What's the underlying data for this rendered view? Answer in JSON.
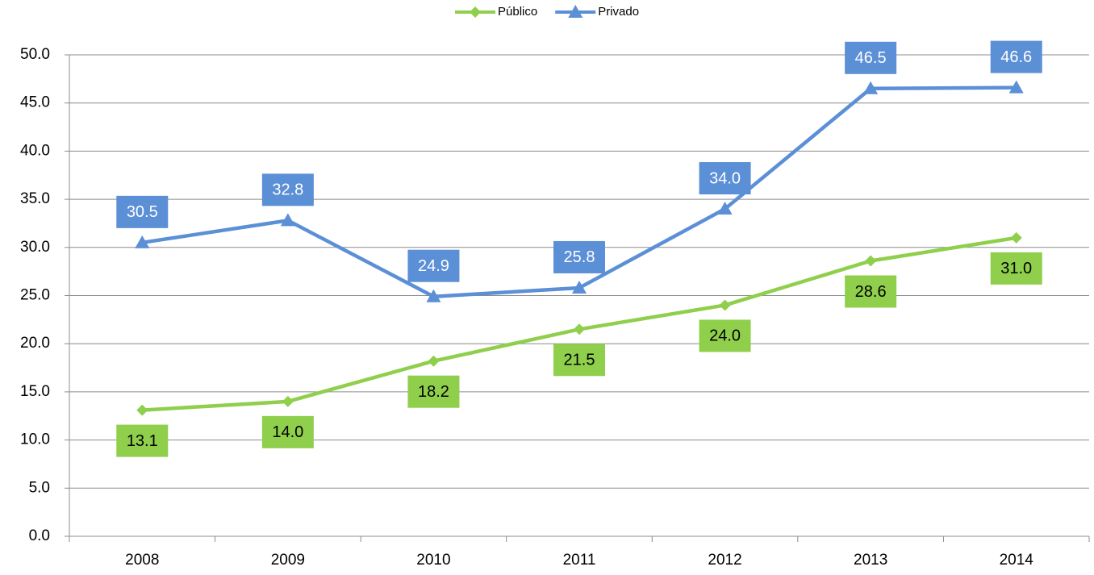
{
  "chart_data": {
    "type": "line",
    "categories": [
      "2008",
      "2009",
      "2010",
      "2011",
      "2012",
      "2013",
      "2014"
    ],
    "series": [
      {
        "name": "Público",
        "color": "#8fcf4c",
        "marker": "diamond",
        "values": [
          13.1,
          14.0,
          18.2,
          21.5,
          24.0,
          28.6,
          31.0
        ],
        "value_labels": [
          "13.1",
          "14.0",
          "18.2",
          "21.5",
          "24.0",
          "28.6",
          "31.0"
        ]
      },
      {
        "name": "Privado",
        "color": "#5b8fd6",
        "marker": "triangle",
        "values": [
          30.5,
          32.8,
          24.9,
          25.8,
          34.0,
          46.5,
          46.6
        ],
        "value_labels": [
          "30.5",
          "32.8",
          "24.9",
          "25.8",
          "34.0",
          "46.5",
          "46.6"
        ]
      }
    ],
    "ylim": [
      0,
      50
    ],
    "yticks": [
      {
        "value": 0,
        "label": "0.0"
      },
      {
        "value": 5,
        "label": "5.0"
      },
      {
        "value": 10,
        "label": "10.0"
      },
      {
        "value": 15,
        "label": "15.0"
      },
      {
        "value": 20,
        "label": "20.0"
      },
      {
        "value": 25,
        "label": "25.0"
      },
      {
        "value": 30,
        "label": "30.0"
      },
      {
        "value": 35,
        "label": "35.0"
      },
      {
        "value": 40,
        "label": "40.0"
      },
      {
        "value": 45,
        "label": "45.0"
      },
      {
        "value": 50,
        "label": "50.0"
      }
    ],
    "grid": true,
    "legend": "top"
  }
}
